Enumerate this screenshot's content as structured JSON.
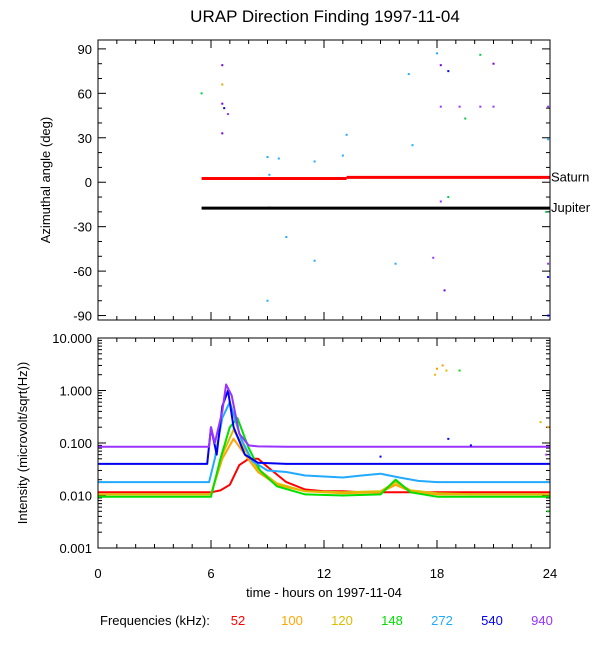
{
  "chart_data": [
    {
      "type": "scatter",
      "title": "URAP Direction Finding  1997-11-04",
      "ylabel": "Azimuthal angle (deg)",
      "xlabel": "",
      "xlim": [
        0,
        24
      ],
      "ylim": [
        -93,
        96
      ],
      "yticks": [
        90,
        60,
        30,
        0,
        -30,
        -60,
        -90
      ],
      "reference_lines": [
        {
          "name": "Saturn",
          "color": "#ff0000",
          "segments": [
            [
              5.5,
              13.2,
              2.5
            ],
            [
              13.2,
              24,
              3.3
            ]
          ]
        },
        {
          "name": "Jupiter",
          "color": "#000000",
          "segments": [
            [
              5.5,
              24,
              -17.5
            ]
          ]
        }
      ],
      "points": [
        {
          "x": 5.5,
          "y": 60,
          "color": "#00cc44"
        },
        {
          "x": 6.6,
          "y": 79,
          "color": "#7700cc"
        },
        {
          "x": 6.6,
          "y": 66,
          "color": "#ddaa00"
        },
        {
          "x": 6.6,
          "y": 53,
          "color": "#7700cc"
        },
        {
          "x": 6.7,
          "y": 50,
          "color": "#0000ff"
        },
        {
          "x": 6.9,
          "y": 46,
          "color": "#9933ff"
        },
        {
          "x": 6.6,
          "y": 33,
          "color": "#7700cc"
        },
        {
          "x": 9.0,
          "y": 17,
          "color": "#22aaff"
        },
        {
          "x": 9.6,
          "y": 16,
          "color": "#22aaff"
        },
        {
          "x": 9.1,
          "y": 5,
          "color": "#22aaff"
        },
        {
          "x": 9.1,
          "y": -17,
          "color": "#22aaff"
        },
        {
          "x": 10.0,
          "y": -37,
          "color": "#22aaff"
        },
        {
          "x": 11.5,
          "y": -53,
          "color": "#22aaff"
        },
        {
          "x": 9.0,
          "y": -80,
          "color": "#22aaff"
        },
        {
          "x": 11.5,
          "y": 14,
          "color": "#22aaff"
        },
        {
          "x": 13.0,
          "y": 18,
          "color": "#22aaff"
        },
        {
          "x": 13.2,
          "y": 32,
          "color": "#22aaff"
        },
        {
          "x": 16.5,
          "y": 73,
          "color": "#22aaff"
        },
        {
          "x": 16.7,
          "y": 25,
          "color": "#22aaff"
        },
        {
          "x": 15.8,
          "y": -55,
          "color": "#22aaff"
        },
        {
          "x": 17.8,
          "y": -51,
          "color": "#9933ff"
        },
        {
          "x": 18.0,
          "y": 87,
          "color": "#22aaff"
        },
        {
          "x": 18.2,
          "y": 79,
          "color": "#7700cc"
        },
        {
          "x": 18.6,
          "y": 75,
          "color": "#0000ff"
        },
        {
          "x": 18.2,
          "y": 51,
          "color": "#9933ff"
        },
        {
          "x": 18.2,
          "y": -13,
          "color": "#9933ff"
        },
        {
          "x": 18.6,
          "y": -10,
          "color": "#00cc44"
        },
        {
          "x": 18.4,
          "y": -73,
          "color": "#7700cc"
        },
        {
          "x": 19.2,
          "y": 51,
          "color": "#9933ff"
        },
        {
          "x": 19.5,
          "y": 43,
          "color": "#00cc44"
        },
        {
          "x": 20.3,
          "y": 86,
          "color": "#00cc44"
        },
        {
          "x": 20.3,
          "y": 51,
          "color": "#9933ff"
        },
        {
          "x": 21.0,
          "y": 80,
          "color": "#7700cc"
        },
        {
          "x": 21.0,
          "y": 51,
          "color": "#9933ff"
        },
        {
          "x": 23.9,
          "y": 51,
          "color": "#9933ff"
        },
        {
          "x": 23.8,
          "y": -20,
          "color": "#00cc44"
        },
        {
          "x": 23.9,
          "y": 29,
          "color": "#22aaff"
        },
        {
          "x": 23.9,
          "y": -55,
          "color": "#9933ff"
        },
        {
          "x": 23.9,
          "y": -64,
          "color": "#0000ff"
        },
        {
          "x": 23.9,
          "y": -90,
          "color": "#0000ff"
        }
      ]
    },
    {
      "type": "line",
      "title": "",
      "ylabel": "Intensity (microvolt/sqrt(Hz))",
      "xlabel": "time - hours on 1997-11-04",
      "yscale": "log",
      "xlim": [
        0,
        24
      ],
      "ylim": [
        0.001,
        10
      ],
      "xticks": [
        0,
        6,
        12,
        18,
        24
      ],
      "yticks": [
        10,
        1,
        0.1,
        0.01,
        0.001
      ],
      "ytick_labels": [
        "10.000",
        "1.000",
        "0.100",
        "0.010",
        "0.001"
      ],
      "series": [
        {
          "name": "52",
          "color": "#ff0000",
          "x": [
            0,
            6,
            6.5,
            7,
            7.5,
            8,
            8.5,
            9,
            10,
            11,
            12,
            13,
            14,
            15,
            16,
            17,
            18,
            19,
            20,
            21,
            22,
            23,
            24
          ],
          "y": [
            0.0115,
            0.0115,
            0.0125,
            0.016,
            0.038,
            0.05,
            0.05,
            0.035,
            0.018,
            0.013,
            0.012,
            0.012,
            0.0115,
            0.0115,
            0.0115,
            0.0115,
            0.0115,
            0.0115,
            0.0115,
            0.0115,
            0.0115,
            0.0115,
            0.0115
          ]
        },
        {
          "name": "100",
          "color": "#ffa500",
          "x": [
            0,
            6,
            6.6,
            7.2,
            7.8,
            8.5,
            9.5,
            11,
            13,
            15,
            15.8,
            16.6,
            18,
            20,
            22,
            24
          ],
          "y": [
            0.0105,
            0.0105,
            0.05,
            0.12,
            0.06,
            0.028,
            0.016,
            0.012,
            0.011,
            0.0115,
            0.016,
            0.012,
            0.0105,
            0.0105,
            0.0105,
            0.0105
          ]
        },
        {
          "name": "120",
          "color": "#ddbb00",
          "x": [
            0,
            6,
            6.6,
            7.2,
            7.8,
            8.5,
            9.5,
            11,
            13,
            15,
            15.8,
            16.6,
            18,
            20,
            22,
            24
          ],
          "y": [
            0.0105,
            0.0105,
            0.06,
            0.18,
            0.075,
            0.032,
            0.017,
            0.012,
            0.0115,
            0.012,
            0.018,
            0.0125,
            0.011,
            0.0105,
            0.0105,
            0.0105
          ]
        },
        {
          "name": "148",
          "color": "#00e000",
          "x": [
            0,
            6,
            6.5,
            7,
            7.4,
            8,
            8.6,
            9.5,
            11,
            13,
            15,
            15.8,
            16.6,
            18,
            20,
            22,
            24
          ],
          "y": [
            0.0095,
            0.0095,
            0.05,
            0.2,
            0.3,
            0.08,
            0.03,
            0.015,
            0.0105,
            0.01,
            0.0105,
            0.02,
            0.0115,
            0.0095,
            0.0095,
            0.0095,
            0.0095
          ]
        },
        {
          "name": "272",
          "color": "#22aaff",
          "x": [
            0,
            5.9,
            6.2,
            6.6,
            7,
            7.6,
            8.2,
            9,
            10,
            11,
            13,
            14,
            15,
            16,
            17,
            18,
            20,
            22,
            24
          ],
          "y": [
            0.018,
            0.018,
            0.05,
            0.3,
            0.6,
            0.12,
            0.045,
            0.03,
            0.028,
            0.024,
            0.022,
            0.024,
            0.026,
            0.022,
            0.019,
            0.018,
            0.018,
            0.018,
            0.018
          ]
        },
        {
          "name": "540",
          "color": "#0000ee",
          "x": [
            0,
            5.8,
            6.0,
            6.3,
            6.6,
            6.9,
            7.2,
            7.8,
            8.5,
            10,
            12,
            14,
            16,
            18,
            20,
            22,
            24
          ],
          "y": [
            0.04,
            0.04,
            0.2,
            0.06,
            0.5,
            1.0,
            0.2,
            0.06,
            0.042,
            0.04,
            0.04,
            0.04,
            0.04,
            0.04,
            0.04,
            0.04,
            0.04
          ]
        },
        {
          "name": "940",
          "color": "#9933ff",
          "x": [
            0,
            5.9,
            6.0,
            6.2,
            6.6,
            6.8,
            7.1,
            7.5,
            8.0,
            8.5,
            10,
            12,
            14,
            16,
            18,
            20,
            22,
            24
          ],
          "y": [
            0.085,
            0.085,
            0.2,
            0.1,
            0.4,
            1.3,
            0.8,
            0.15,
            0.09,
            0.086,
            0.085,
            0.085,
            0.085,
            0.085,
            0.085,
            0.085,
            0.085,
            0.085
          ]
        }
      ],
      "scatter_points": [
        {
          "x": 18.3,
          "y": 3.0,
          "color": "#ff9900"
        },
        {
          "x": 18.0,
          "y": 2.6,
          "color": "#ff9900"
        },
        {
          "x": 18.5,
          "y": 2.4,
          "color": "#ddbb00"
        },
        {
          "x": 17.9,
          "y": 2.0,
          "color": "#ddbb00"
        },
        {
          "x": 19.2,
          "y": 2.4,
          "color": "#00e000"
        },
        {
          "x": 18.6,
          "y": 0.12,
          "color": "#0000ee"
        },
        {
          "x": 19.8,
          "y": 0.09,
          "color": "#0000ee"
        },
        {
          "x": 23.5,
          "y": 0.25,
          "color": "#ddbb00"
        },
        {
          "x": 23.8,
          "y": 0.06,
          "color": "#9933ff"
        },
        {
          "x": 23.9,
          "y": 0.005,
          "color": "#00e000"
        },
        {
          "x": 23.9,
          "y": 0.2,
          "color": "#ff9900"
        },
        {
          "x": 15.0,
          "y": 0.055,
          "color": "#0000ee"
        }
      ]
    }
  ],
  "legend": {
    "label": "Frequencies (kHz):",
    "items": [
      {
        "text": "52",
        "color": "#ff0000"
      },
      {
        "text": "100",
        "color": "#ffa500"
      },
      {
        "text": "120",
        "color": "#ddbb00"
      },
      {
        "text": "148",
        "color": "#00e000"
      },
      {
        "text": "272",
        "color": "#22aaff"
      },
      {
        "text": "540",
        "color": "#0000ee"
      },
      {
        "text": "940",
        "color": "#9933ff"
      }
    ]
  }
}
